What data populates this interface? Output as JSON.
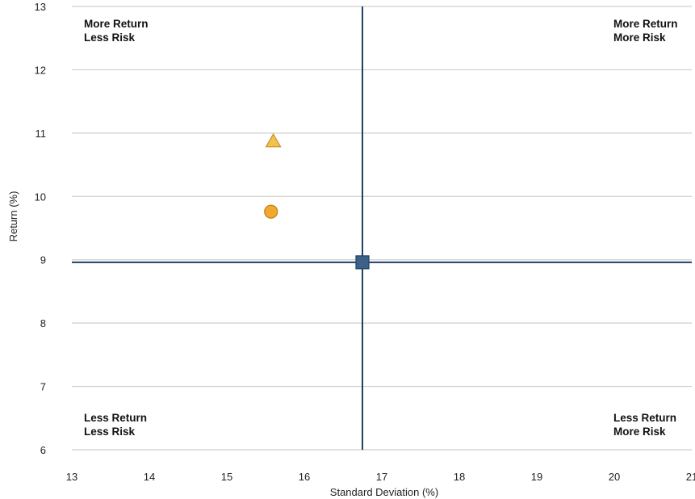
{
  "chart_data": {
    "type": "scatter",
    "xlabel": "Standard Deviation (%)",
    "ylabel": "Return (%)",
    "xlim": [
      13,
      21
    ],
    "ylim": [
      6,
      13
    ],
    "x_ticks": [
      13,
      14,
      15,
      16,
      17,
      18,
      19,
      20,
      21
    ],
    "y_ticks": [
      6,
      7,
      8,
      9,
      10,
      11,
      12,
      13
    ],
    "grid": "horizontal",
    "legend": "none",
    "reference_lines": {
      "x": 16.75,
      "y": 8.96,
      "color": "#1f3f66"
    },
    "points": [
      {
        "x": 15.6,
        "y": 10.87,
        "marker": "triangle",
        "color": "#f2c14e"
      },
      {
        "x": 15.57,
        "y": 9.76,
        "marker": "circle",
        "color": "#f0a830"
      },
      {
        "x": 16.75,
        "y": 8.96,
        "marker": "square",
        "color": "#3d6288"
      }
    ],
    "quadrant_labels": {
      "top_left": [
        "More Return",
        "Less Risk"
      ],
      "top_right": [
        "More Return",
        "More Risk"
      ],
      "bottom_left": [
        "Less Return",
        "Less Risk"
      ],
      "bottom_right": [
        "Less Return",
        "More Risk"
      ]
    }
  }
}
